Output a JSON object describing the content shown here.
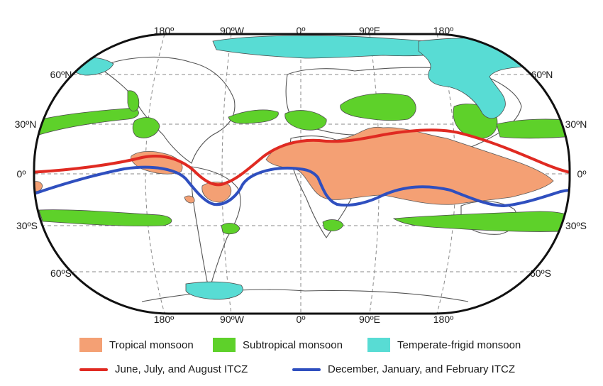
{
  "map": {
    "top_lon_labels": [
      "180º",
      "90ºW",
      "0º",
      "90ºE",
      "180º"
    ],
    "bottom_lon_labels": [
      "180º",
      "90ºW",
      "0º",
      "90ºE",
      "180º"
    ],
    "left_lat_labels": [
      "60ºN",
      "30ºN",
      "0º",
      "30ºS",
      "60ºS"
    ],
    "right_lat_labels": [
      "60ºN",
      "30ºN",
      "0º",
      "30ºS",
      "60ºS"
    ]
  },
  "legend": {
    "tropical": {
      "label": "Tropical monsoon",
      "color": "#f4a074"
    },
    "subtropical": {
      "label": "Subtropical monsoon",
      "color": "#5ed12a"
    },
    "temperate": {
      "label": "Temperate-frigid monsoon",
      "color": "#58dcd4"
    },
    "jja_itcz": {
      "label": "June, July, and August ITCZ",
      "color": "#e02a22"
    },
    "djf_itcz": {
      "label": "December, January, and February ITCZ",
      "color": "#2f4fbf"
    }
  }
}
